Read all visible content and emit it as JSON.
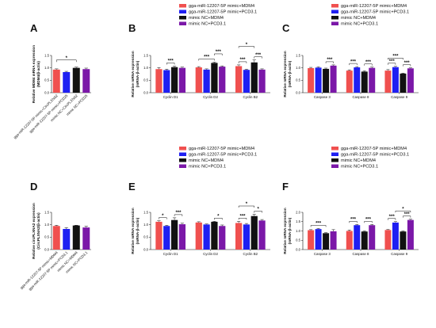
{
  "colors": {
    "red": "#f0504f",
    "blue": "#1f1ff2",
    "black": "#111111",
    "purple": "#7b18a8",
    "grey": "#8c8c8c"
  },
  "chart_data": [
    {
      "id": "A",
      "type": "bar",
      "letter": "A",
      "ylabel": "Relative MDM4 mRNA expression\n(MDM4/β-actin)",
      "ylim": [
        0,
        1.5
      ],
      "yticks": [
        "0.0",
        "0.5",
        "1.0",
        "1.5"
      ],
      "categories": [
        "gga-miR-12207-5P mimic+CircPLXNA2",
        "gga-miR-12207-5P mimic+PCD25",
        "mimic NC+CircPLXNA2",
        "mimic NC+PCD25"
      ],
      "values": [
        0.93,
        0.83,
        1.0,
        0.95
      ],
      "errors": [
        0.03,
        0.03,
        0.03,
        0.04
      ],
      "bar_colors": [
        "red",
        "blue",
        "black",
        "purple"
      ],
      "significance": [
        {
          "from": 0,
          "to": 2,
          "label": "*"
        }
      ]
    },
    {
      "id": "B",
      "type": "bar",
      "letter": "B",
      "ylabel": "Relative mRNA expression\n(mRNA-β-actin)",
      "ylim": [
        0,
        1.5
      ],
      "yticks": [
        "0.0",
        "0.5",
        "1.0",
        "1.5"
      ],
      "categories": [
        "Cyclin D1",
        "Cyclin D2",
        "Cyclin B2"
      ],
      "legend": [
        "gga-miR-12207-5P mimic+MDM4",
        "gga-miR-12207-5P mimic+PCD3.1",
        "mimic NC+MDM4",
        "mimic NC+PCD3.1"
      ],
      "series": [
        {
          "color": "red",
          "values": [
            0.95,
            1.02,
            1.07
          ],
          "errors": [
            0.06,
            0.03,
            0.05
          ]
        },
        {
          "color": "blue",
          "values": [
            0.91,
            0.93,
            0.92
          ],
          "errors": [
            0.04,
            0.03,
            0.03
          ]
        },
        {
          "color": "black",
          "values": [
            1.03,
            1.2,
            1.22
          ],
          "errors": [
            0.04,
            0.03,
            0.1
          ]
        },
        {
          "color": "purple",
          "values": [
            1.0,
            1.05,
            0.93
          ],
          "errors": [
            0.03,
            0.03,
            0.03
          ]
        }
      ],
      "significance": [
        {
          "cat": 0,
          "from": 1,
          "to": 2,
          "level": 0,
          "label": "***"
        },
        {
          "cat": 1,
          "from": 0,
          "to": 2,
          "level": 0,
          "label": "***"
        },
        {
          "cat": 1,
          "from": 2,
          "to": 3,
          "level": 1,
          "label": "***"
        },
        {
          "cat": 2,
          "from": 0,
          "to": 1,
          "level": 0,
          "label": "***"
        },
        {
          "cat": 2,
          "from": 2,
          "to": 3,
          "level": 0,
          "label": "***"
        },
        {
          "cat": 2,
          "from": 0,
          "to": 2,
          "level": 2,
          "label": "*"
        }
      ]
    },
    {
      "id": "C",
      "type": "bar",
      "letter": "C",
      "ylabel": "Relative mRNA expression\n(mRNA-β-actin)",
      "ylim": [
        0,
        1.5
      ],
      "yticks": [
        "0.0",
        "0.5",
        "1.0",
        "1.5"
      ],
      "categories": [
        "Caspase 3",
        "Caspase 8",
        "Caspase 9"
      ],
      "legend": [
        "gga-miR-12207-5P mimic+MDM4",
        "gga-miR-12207-5P mimic+PCD3.1",
        "mimic NC+MDM4",
        "mimic NC+PCD3.1"
      ],
      "series": [
        {
          "color": "red",
          "values": [
            0.99,
            0.89,
            0.89
          ],
          "errors": [
            0.03,
            0.03,
            0.04
          ]
        },
        {
          "color": "blue",
          "values": [
            1.01,
            1.02,
            1.03
          ],
          "errors": [
            0.03,
            0.03,
            0.03
          ]
        },
        {
          "color": "black",
          "values": [
            0.96,
            0.85,
            0.77
          ],
          "errors": [
            0.03,
            0.03,
            0.02
          ]
        },
        {
          "color": "purple",
          "values": [
            1.09,
            1.0,
            0.98
          ],
          "errors": [
            0.03,
            0.03,
            0.02
          ]
        }
      ],
      "significance": [
        {
          "cat": 0,
          "from": 2,
          "to": 3,
          "level": 0,
          "label": "***"
        },
        {
          "cat": 1,
          "from": 0,
          "to": 1,
          "level": 0,
          "label": "***"
        },
        {
          "cat": 1,
          "from": 2,
          "to": 3,
          "level": 0,
          "label": "***"
        },
        {
          "cat": 2,
          "from": 0,
          "to": 1,
          "level": 0,
          "label": "***"
        },
        {
          "cat": 2,
          "from": 2,
          "to": 3,
          "level": 0,
          "label": "***"
        },
        {
          "cat": 2,
          "from": 0,
          "to": 2,
          "level": 1,
          "label": "***"
        }
      ]
    },
    {
      "id": "D",
      "type": "bar",
      "letter": "D",
      "ylabel": "Relative circPLXNA2 expression\n(CircPLXNA2/β-actin)",
      "ylim": [
        0,
        1.5
      ],
      "yticks": [
        "0.0",
        "0.5",
        "1.0",
        "1.5"
      ],
      "categories": [
        "gga-miR-12207-5P mimic+MDM4",
        "gga-miR-12207-5P mimic+PCD3.1",
        "mimic NC+MDM4",
        "mimic NC+PCD3.1"
      ],
      "values": [
        0.95,
        0.83,
        0.97,
        0.89
      ],
      "errors": [
        0.03,
        0.05,
        0.01,
        0.05
      ],
      "bar_colors": [
        "red",
        "blue",
        "black",
        "purple"
      ],
      "significance": []
    },
    {
      "id": "E",
      "type": "bar",
      "letter": "E",
      "ylabel": "Relative mRNA expression\n(mRNA-β-actin)",
      "ylim": [
        0,
        1.5
      ],
      "yticks": [
        "0.0",
        "0.5",
        "1.0",
        "1.5"
      ],
      "categories": [
        "Cyclin D1",
        "Cyclin D2",
        "Cyclin B2"
      ],
      "legend": [
        "gga-miR-12207-5P mimic+MDM4",
        "gga-miR-12207-5P mimic+PCD3.1",
        "mimic NC+MDM4",
        "mimic NC+PCD3.1"
      ],
      "series": [
        {
          "color": "red",
          "values": [
            1.12,
            1.09,
            1.07
          ],
          "errors": [
            0.04,
            0.03,
            0.07
          ]
        },
        {
          "color": "blue",
          "values": [
            0.95,
            1.01,
            1.01
          ],
          "errors": [
            0.03,
            0.02,
            0.04
          ]
        },
        {
          "color": "black",
          "values": [
            1.19,
            1.12,
            1.35
          ],
          "errors": [
            0.09,
            0.02,
            0.07
          ]
        },
        {
          "color": "purple",
          "values": [
            1.02,
            0.95,
            1.17
          ],
          "errors": [
            0.04,
            0.04,
            0.04
          ]
        }
      ],
      "significance": [
        {
          "cat": 0,
          "from": 0,
          "to": 1,
          "level": 0,
          "label": "*"
        },
        {
          "cat": 0,
          "from": 2,
          "to": 3,
          "level": 0,
          "label": "***"
        },
        {
          "cat": 1,
          "from": 2,
          "to": 3,
          "level": 0,
          "label": "*"
        },
        {
          "cat": 2,
          "from": 0,
          "to": 1,
          "level": 0,
          "label": "***"
        },
        {
          "cat": 2,
          "from": 2,
          "to": 3,
          "level": 0,
          "label": "*"
        },
        {
          "cat": 2,
          "from": 0,
          "to": 2,
          "level": 1,
          "label": "*"
        }
      ]
    },
    {
      "id": "F",
      "type": "bar",
      "letter": "F",
      "ylabel": "Relative mRNA expression\n(mRNA-β-actin)",
      "ylim": [
        0,
        2.0
      ],
      "yticks": [
        "0.0",
        "0.5",
        "1.0",
        "1.5",
        "2.0"
      ],
      "categories": [
        "Caspase 3",
        "Caspase 8",
        "Caspase 9"
      ],
      "legend": [
        "gga-miR-12207-5P mimic+MDM4",
        "gga-miR-12207-5P mimic+PCD3.1",
        "mimic NC+MDM4",
        "mimic NC+PCD3.1"
      ],
      "series": [
        {
          "color": "red",
          "values": [
            1.04,
            1.0,
            1.05
          ],
          "errors": [
            0.03,
            0.05,
            0.03
          ]
        },
        {
          "color": "blue",
          "values": [
            1.1,
            1.31,
            1.45
          ],
          "errors": [
            0.03,
            0.04,
            0.05
          ]
        },
        {
          "color": "black",
          "values": [
            0.88,
            0.97,
            0.97
          ],
          "errors": [
            0.03,
            0.03,
            0.03
          ]
        },
        {
          "color": "purple",
          "values": [
            0.98,
            1.31,
            1.59
          ],
          "errors": [
            0.09,
            0.04,
            0.04
          ]
        }
      ],
      "significance": [
        {
          "cat": 0,
          "from": 0,
          "to": 2,
          "level": 0,
          "label": "***"
        },
        {
          "cat": 1,
          "from": 0,
          "to": 1,
          "level": 0,
          "label": "***"
        },
        {
          "cat": 1,
          "from": 2,
          "to": 3,
          "level": 0,
          "label": "***"
        },
        {
          "cat": 2,
          "from": 0,
          "to": 1,
          "level": 0,
          "label": "***"
        },
        {
          "cat": 2,
          "from": 2,
          "to": 3,
          "level": 0,
          "label": "***"
        },
        {
          "cat": 2,
          "from": 1,
          "to": 3,
          "level": 1,
          "label": "*"
        }
      ]
    }
  ]
}
